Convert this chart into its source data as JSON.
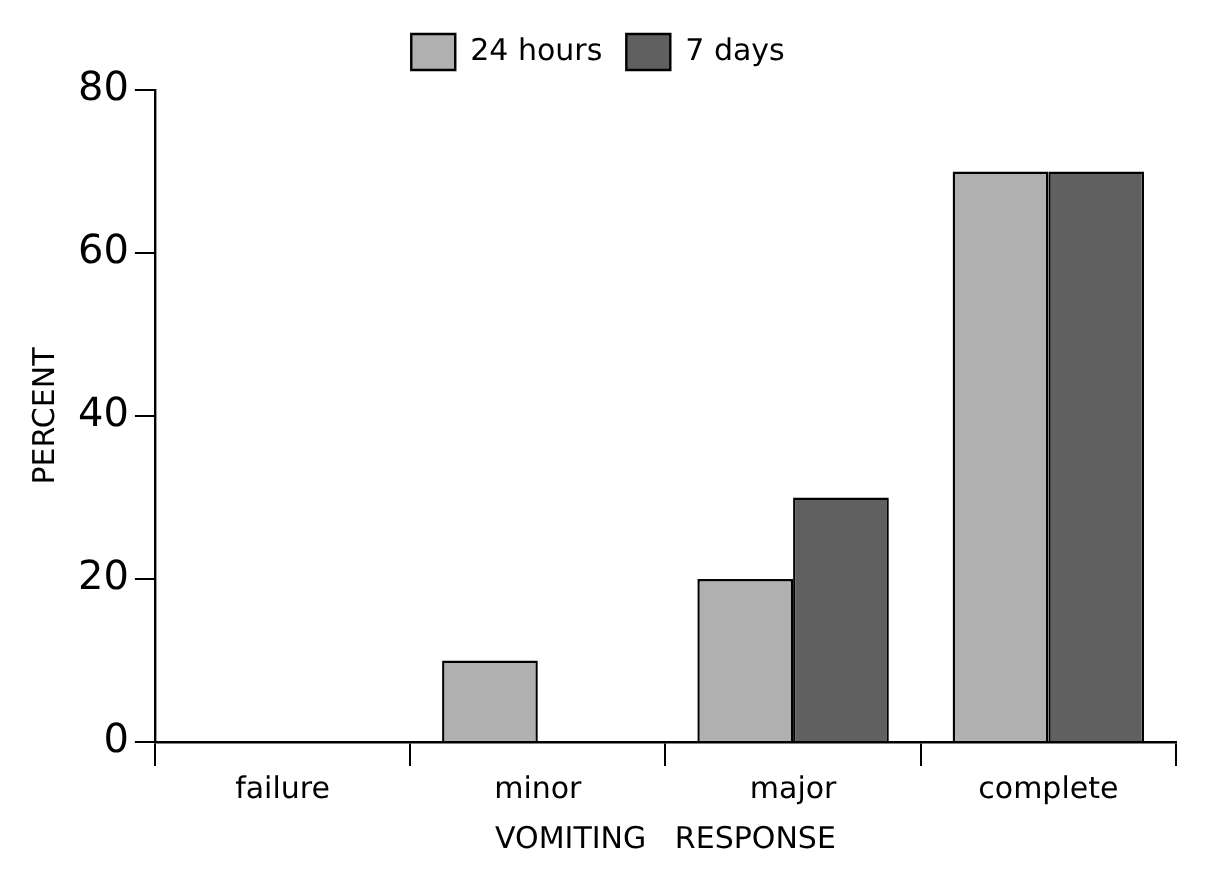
{
  "chart_data": {
    "type": "bar",
    "xlabel": "VOMITING   RESPONSE",
    "ylabel": "PERCENT",
    "categories": [
      "failure",
      "minor",
      "major",
      "complete"
    ],
    "series": [
      {
        "name": "24 hours",
        "color": "#b0b0b0",
        "values": [
          0,
          10,
          20,
          70
        ]
      },
      {
        "name": "7 days",
        "color": "#606060",
        "values": [
          0,
          0,
          30,
          70
        ]
      }
    ],
    "ylim": [
      0,
      80
    ],
    "yticks": [
      0,
      20,
      40,
      60,
      80
    ],
    "grid": false,
    "legend": "top"
  }
}
